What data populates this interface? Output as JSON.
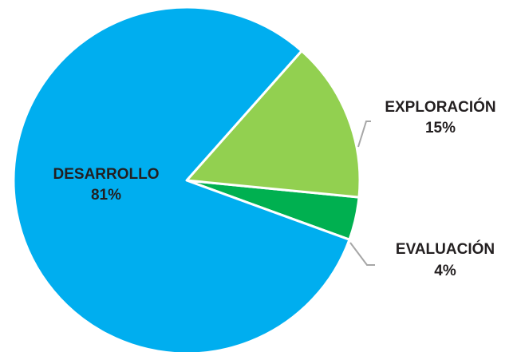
{
  "chart_data": {
    "type": "pie",
    "title": "",
    "slices": [
      {
        "label": "DESARROLLO",
        "value": 81,
        "value_label": "81%",
        "color": "#00aeef",
        "label_placement": "inside"
      },
      {
        "label": "EXPLORACIÓN",
        "value": 15,
        "value_label": "15%",
        "color": "#92d050",
        "label_placement": "outside"
      },
      {
        "label": "EVALUACIÓN",
        "value": 4,
        "value_label": "4%",
        "color": "#00b050",
        "label_placement": "outside"
      }
    ],
    "legend": "none"
  }
}
